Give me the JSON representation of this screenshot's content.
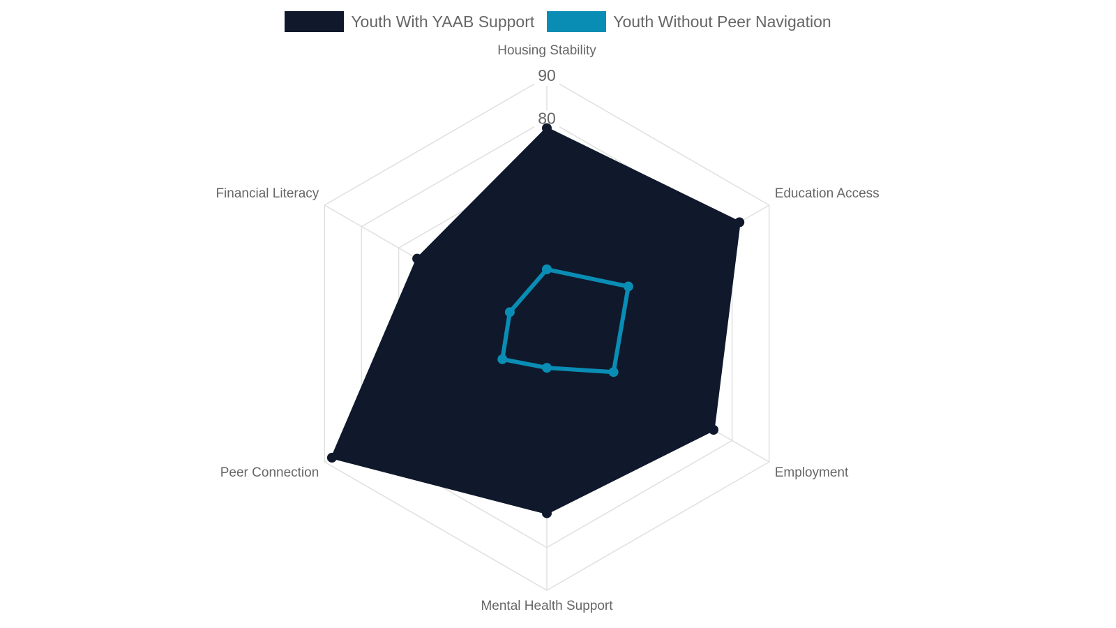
{
  "chart_data": {
    "type": "radar",
    "title": "",
    "categories": [
      "Housing Stability",
      "Education Access",
      "Employment",
      "Mental Health Support",
      "Peer Connection",
      "Financial Literacy"
    ],
    "series": [
      {
        "name": "Youth With YAAB Support",
        "values": [
          78,
          82,
          75,
          72,
          88,
          65
        ],
        "color": "#0f192b",
        "filled": true
      },
      {
        "name": "Youth Without Peer Navigation",
        "values": [
          45,
          52,
          48,
          38,
          42,
          40
        ],
        "color": "#0a8db5",
        "filled": false
      }
    ],
    "r_range": [
      30,
      90
    ],
    "tick_labels_shown": [
      "80",
      "90"
    ],
    "grid": true,
    "legend_position": "top-center",
    "colors": {
      "grid": "#e0e0e0",
      "label": "#666666"
    }
  }
}
